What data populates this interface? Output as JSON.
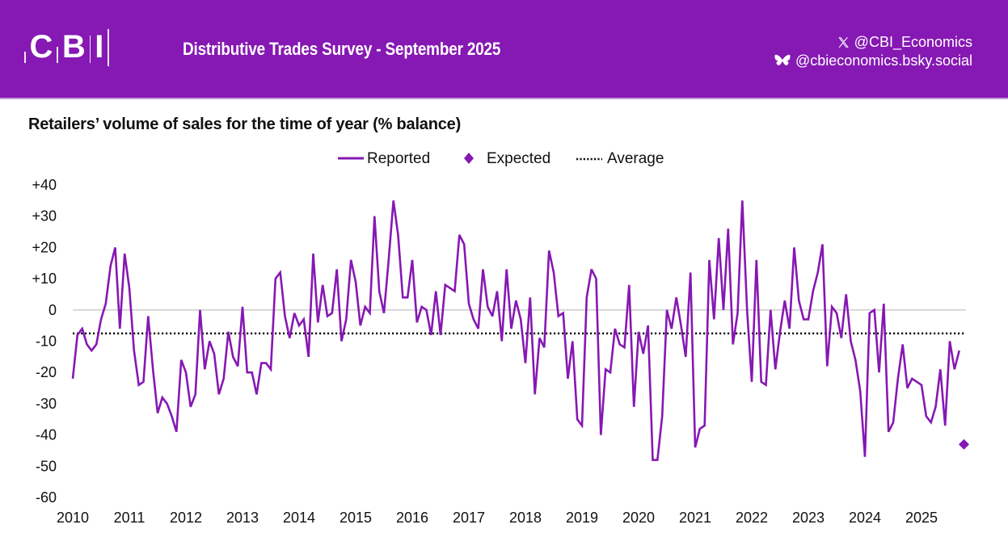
{
  "header": {
    "logo_letters": [
      "C",
      "B",
      "I"
    ],
    "survey_title": "Distributive Trades Survey - September 2025",
    "social": [
      {
        "icon": "x-icon",
        "handle": "@CBI_Economics"
      },
      {
        "icon": "bluesky-butterfly-icon",
        "handle": "@cbieconomics.bsky.social"
      }
    ]
  },
  "colors": {
    "banner": "#8618b3",
    "series": "#8618b3",
    "average": "#111111",
    "zero_line": "#c8c8c8"
  },
  "chart_data": {
    "type": "line",
    "title": "Retailers’ volume of sales for the time of year (% balance)",
    "xlabel": "",
    "ylabel": "",
    "ylim": [
      -60,
      40
    ],
    "yticks": [
      40,
      30,
      20,
      10,
      0,
      -10,
      -20,
      -30,
      -40,
      -50,
      -60
    ],
    "ytick_labels": [
      "+40",
      "+30",
      "+20",
      "+10",
      "0",
      "-10",
      "-20",
      "-30",
      "-40",
      "-50",
      "-60"
    ],
    "xticks": [
      "2010",
      "2011",
      "2012",
      "2013",
      "2014",
      "2015",
      "2016",
      "2017",
      "2018",
      "2019",
      "2020",
      "2021",
      "2022",
      "2023",
      "2024",
      "2025"
    ],
    "x_start": "2010-01",
    "frequency": "monthly",
    "legend": {
      "placement": "top-center",
      "entries": [
        {
          "label": "Reported",
          "style": "line"
        },
        {
          "label": "Expected",
          "style": "diamond"
        },
        {
          "label": "Average",
          "style": "dotted"
        }
      ]
    },
    "grid": false,
    "series": [
      {
        "name": "Reported",
        "values": [
          -22,
          -8,
          -6,
          -11,
          -13,
          -11,
          -3,
          2,
          14,
          20,
          -6,
          18,
          7,
          -13,
          -24,
          -23,
          -2,
          -19,
          -33,
          -28,
          -30,
          -34,
          -39,
          -16,
          -20,
          -31,
          -27,
          0,
          -19,
          -10,
          -14,
          -27,
          -22,
          -7,
          -15,
          -18,
          1,
          -20,
          -20,
          -27,
          -17,
          -17,
          -19,
          10,
          12,
          -2,
          -9,
          -1,
          -5,
          -3,
          -15,
          18,
          -4,
          8,
          -2,
          -1,
          13,
          -10,
          -3,
          16,
          9,
          -5,
          1,
          -1,
          30,
          6,
          -1,
          16,
          35,
          24,
          4,
          4,
          16,
          -4,
          1,
          0,
          -8,
          6,
          -8,
          8,
          7,
          6,
          24,
          21,
          2,
          -3,
          -6,
          13,
          1,
          -2,
          6,
          -10,
          13,
          -6,
          3,
          -3,
          -17,
          4,
          -27,
          -9,
          -12,
          19,
          12,
          -2,
          -1,
          -22,
          -10,
          -35,
          -37,
          4,
          13,
          10,
          -40,
          -19,
          -20,
          -6,
          -11,
          -12,
          8,
          -31,
          -7,
          -14,
          -5,
          -48,
          -48,
          -34,
          0,
          -6,
          4,
          -5,
          -15,
          12,
          -44,
          -38,
          -37,
          16,
          -3,
          23,
          0,
          26,
          -11,
          -1,
          35,
          0,
          -23,
          16,
          -23,
          -24,
          0,
          -19,
          -7,
          3,
          -6,
          20,
          3,
          -3,
          -3,
          6,
          12,
          21,
          -18,
          1,
          -1,
          -9,
          5,
          -10,
          -16,
          -26,
          -47,
          -1,
          0,
          -20,
          2,
          -39,
          -36,
          -22,
          -11,
          -25,
          -22,
          -23,
          -24,
          -34,
          -36,
          -31,
          -19,
          -37,
          -10,
          -19,
          -13
        ]
      },
      {
        "name": "Expected",
        "points": [
          {
            "x": "2025-10",
            "y": -43
          }
        ]
      },
      {
        "name": "Average",
        "value": -7.5
      }
    ]
  }
}
